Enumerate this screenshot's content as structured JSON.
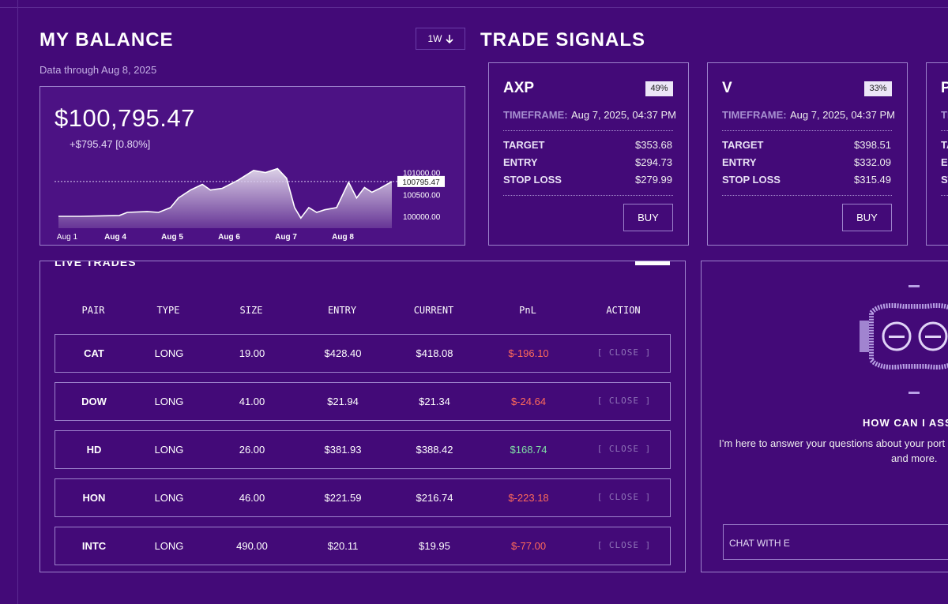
{
  "balance": {
    "title": "MY BALANCE",
    "range_button": "1W",
    "subtitle": "Data through Aug 8, 2025",
    "amount": "$100,795.47",
    "change": "+$795.47 [0.80%]",
    "chart": {
      "type": "area",
      "color": "#ffffff",
      "x": [
        0,
        0.38,
        1.07,
        1.21,
        1.56,
        1.76,
        1.97,
        2.11,
        2.32,
        2.53,
        2.67,
        2.88,
        3.15,
        3.43,
        3.64,
        3.85,
        4.01,
        4.15,
        4.26,
        4.4,
        4.54,
        4.68,
        4.89,
        5.1,
        5.24,
        5.38,
        5.51,
        5.65,
        5.86
      ],
      "values": [
        100000,
        100000,
        100020,
        100090,
        100110,
        100090,
        100200,
        100420,
        100600,
        100730,
        100600,
        100640,
        100820,
        101050,
        101000,
        101090,
        100870,
        100200,
        99960,
        100200,
        100090,
        100150,
        100200,
        100780,
        100420,
        100660,
        100550,
        100640,
        100795.47
      ],
      "xlim": [
        0,
        5.86
      ],
      "ylim": [
        99730,
        101100
      ],
      "xticks": [
        {
          "value": 0,
          "label": "Aug 1"
        },
        {
          "value": 1,
          "label": "Aug 4"
        },
        {
          "value": 2,
          "label": "Aug 5"
        },
        {
          "value": 3,
          "label": "Aug 6"
        },
        {
          "value": 4,
          "label": "Aug 7"
        },
        {
          "value": 5,
          "label": "Aug 8"
        }
      ],
      "yticks": [
        {
          "value": 100000,
          "label": "100000.00"
        },
        {
          "value": 100500,
          "label": "100500.00"
        },
        {
          "value": 101000,
          "label": "101000.00"
        }
      ],
      "current": {
        "value": 100795.47,
        "label": "100795.47"
      }
    }
  },
  "signals": {
    "title": "TRADE SIGNALS",
    "timeframe_label": "TIMEFRAME:",
    "row_labels": [
      "TARGET",
      "ENTRY",
      "STOP LOSS"
    ],
    "button": "BUY",
    "cards": [
      {
        "ticker": "AXP",
        "confidence": "49%",
        "timeframe": "Aug 7, 2025, 04:37 PM",
        "values": [
          "$353.68",
          "$294.73",
          "$279.99"
        ]
      },
      {
        "ticker": "V",
        "confidence": "33%",
        "timeframe": "Aug 7, 2025, 04:37 PM",
        "values": [
          "$398.51",
          "$332.09",
          "$315.49"
        ]
      },
      {
        "ticker": "P"
      }
    ]
  },
  "trades": {
    "title": "LIVE TRADES",
    "columns": [
      "PAIR",
      "TYPE",
      "SIZE",
      "ENTRY",
      "CURRENT",
      "PnL",
      "ACTION"
    ],
    "rows": [
      [
        "CAT",
        "LONG",
        "19.00",
        "$428.40",
        "$418.08",
        "$-196.10",
        "[ CLOSE ]"
      ],
      [
        "DOW",
        "LONG",
        "41.00",
        "$21.94",
        "$21.34",
        "$-24.64",
        "[ CLOSE ]"
      ],
      [
        "HD",
        "LONG",
        "26.00",
        "$381.93",
        "$388.42",
        "$168.74",
        "[ CLOSE ]"
      ],
      [
        "HON",
        "LONG",
        "46.00",
        "$221.59",
        "$216.74",
        "$-223.18",
        "[ CLOSE ]"
      ],
      [
        "INTC",
        "LONG",
        "490.00",
        "$20.11",
        "$19.95",
        "$-77.00",
        "[ CLOSE ]"
      ]
    ]
  },
  "assistant": {
    "heading": "HOW CAN I ASSIS",
    "text": [
      "I’m here to answer your questions about your port",
      "and more."
    ],
    "input_placeholder": "CHAT WITH E"
  }
}
